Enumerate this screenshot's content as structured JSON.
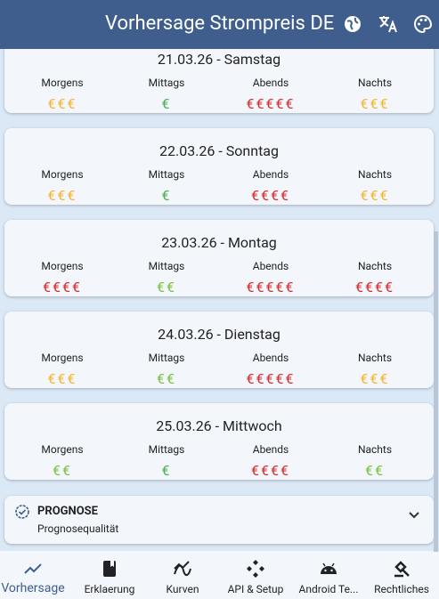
{
  "header": {
    "title": "Vorhersage Strompreis DE"
  },
  "days": [
    {
      "title": "21.03.26 - Samstag",
      "slots": [
        {
          "label": "Morgens",
          "price": "€€€",
          "color": "#f6b530"
        },
        {
          "label": "Mittags",
          "price": "€",
          "color": "#4caf50"
        },
        {
          "label": "Abends",
          "price": "€€€€€",
          "color": "#d32f2f"
        },
        {
          "label": "Nachts",
          "price": "€€€",
          "color": "#f6b530"
        }
      ]
    },
    {
      "title": "22.03.26 - Sonntag",
      "slots": [
        {
          "label": "Morgens",
          "price": "€€€",
          "color": "#f6b530"
        },
        {
          "label": "Mittags",
          "price": "€",
          "color": "#4caf50"
        },
        {
          "label": "Abends",
          "price": "€€€€",
          "color": "#d32f2f"
        },
        {
          "label": "Nachts",
          "price": "€€€",
          "color": "#f6b530"
        }
      ]
    },
    {
      "title": "23.03.26 - Montag",
      "slots": [
        {
          "label": "Morgens",
          "price": "€€€€",
          "color": "#d32f2f"
        },
        {
          "label": "Mittags",
          "price": "€€",
          "color": "#7cc142"
        },
        {
          "label": "Abends",
          "price": "€€€€€",
          "color": "#d32f2f"
        },
        {
          "label": "Nachts",
          "price": "€€€€",
          "color": "#d32f2f"
        }
      ]
    },
    {
      "title": "24.03.26 - Dienstag",
      "slots": [
        {
          "label": "Morgens",
          "price": "€€€",
          "color": "#f6b530"
        },
        {
          "label": "Mittags",
          "price": "€€",
          "color": "#7cc142"
        },
        {
          "label": "Abends",
          "price": "€€€€€",
          "color": "#d32f2f"
        },
        {
          "label": "Nachts",
          "price": "€€€",
          "color": "#f6b530"
        }
      ]
    },
    {
      "title": "25.03.26 - Mittwoch",
      "slots": [
        {
          "label": "Morgens",
          "price": "€€",
          "color": "#7cc142"
        },
        {
          "label": "Mittags",
          "price": "€",
          "color": "#4caf50"
        },
        {
          "label": "Abends",
          "price": "€€€€",
          "color": "#d32f2f"
        },
        {
          "label": "Nachts",
          "price": "€€",
          "color": "#7cc142"
        }
      ]
    }
  ],
  "forecast": {
    "title": "PROGNOSE",
    "subtitle": "Prognosequalität"
  },
  "nav": [
    {
      "label": "Vorhersage",
      "active": true
    },
    {
      "label": "Erklaerung",
      "active": false
    },
    {
      "label": "Kurven",
      "active": false
    },
    {
      "label": "API & Setup",
      "active": false
    },
    {
      "label": "Android Te...",
      "active": false
    },
    {
      "label": "Rechtliches",
      "active": false
    }
  ]
}
